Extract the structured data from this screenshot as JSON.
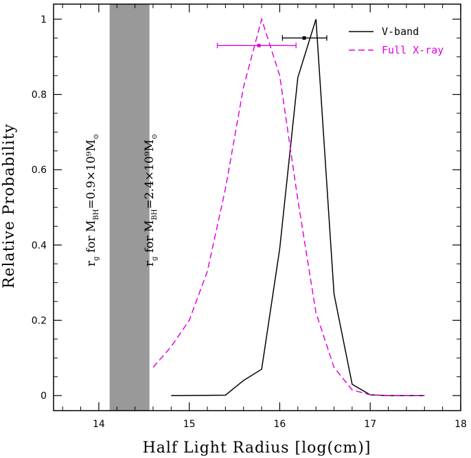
{
  "chart_data": {
    "type": "line",
    "title": "",
    "xlabel": "Half Light Radius [log(cm)]",
    "ylabel": "Relative Probability",
    "xlim": [
      13.5,
      18
    ],
    "ylim": [
      -0.04,
      1.04
    ],
    "xticks": [
      14,
      15,
      16,
      17,
      18
    ],
    "xtick_labels": [
      "14",
      "15",
      "16",
      "17",
      "18"
    ],
    "yticks": [
      0,
      0.2,
      0.4,
      0.6,
      0.8,
      1
    ],
    "ytick_labels": [
      "0",
      "0.2",
      "0.4",
      "0.6",
      "0.8",
      "1"
    ],
    "series": [
      {
        "name": "V-band",
        "color": "#000000",
        "style": "solid",
        "x": [
          14.8,
          15.4,
          15.6,
          15.8,
          16.0,
          16.2,
          16.4,
          16.6,
          16.8,
          17.0,
          17.2,
          17.4,
          17.6
        ],
        "y": [
          0.0,
          0.001,
          0.04,
          0.07,
          0.39,
          0.845,
          1.0,
          0.27,
          0.03,
          0.002,
          0.0,
          0.0,
          0.0
        ],
        "errorbar": {
          "center": 16.27,
          "low": 16.03,
          "high": 16.52,
          "y": 0.95
        }
      },
      {
        "name": "Full X-ray",
        "color": "#e000e0",
        "style": "dashed",
        "x": [
          14.6,
          14.8,
          15.0,
          15.2,
          15.4,
          15.6,
          15.8,
          16.0,
          16.2,
          16.4,
          16.6,
          16.8,
          17.0,
          17.2,
          17.4,
          17.6
        ],
        "y": [
          0.075,
          0.13,
          0.2,
          0.33,
          0.55,
          0.82,
          1.0,
          0.85,
          0.52,
          0.22,
          0.075,
          0.015,
          0.002,
          0.0,
          0.0,
          0.0
        ],
        "errorbar": {
          "center": 15.77,
          "low": 15.31,
          "high": 16.18,
          "y": 0.93
        }
      }
    ],
    "shaded_band": {
      "x_from": 14.12,
      "x_to": 14.56,
      "color": "#999999"
    },
    "annotations": {
      "band_left": {
        "prefix": "r",
        "prefix_sub": "g",
        "mid": " for M",
        "mid_sub": "BH",
        "suffix": "=0.9×10⁹M",
        "suffix_sym": "⊙"
      },
      "band_right": {
        "prefix": "r",
        "prefix_sub": "g",
        "mid": " for M",
        "mid_sub": "BH",
        "suffix": "=2.4×10⁹M",
        "suffix_sym": "⊙"
      }
    },
    "legend": {
      "position": "top-right",
      "entries": [
        {
          "label": "V-band",
          "color": "#000000",
          "style": "solid"
        },
        {
          "label": "Full X-ray",
          "color": "#e000e0",
          "style": "dashed"
        }
      ]
    }
  }
}
